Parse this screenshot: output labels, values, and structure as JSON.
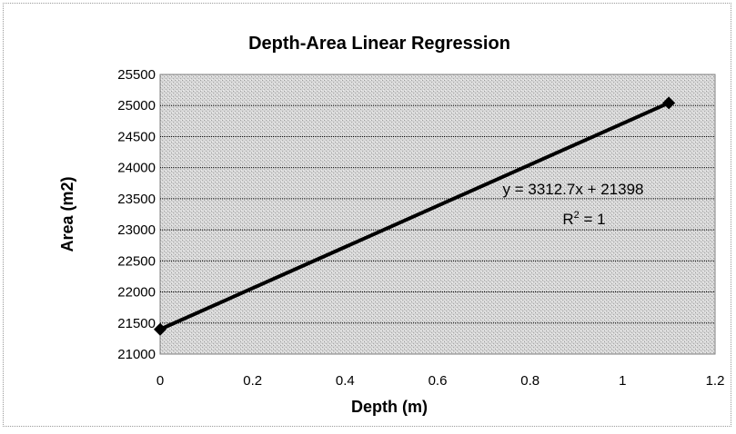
{
  "chart_data": {
    "type": "scatter",
    "title": "Depth-Area Linear Regression",
    "xlabel": "Depth (m)",
    "ylabel": "Area (m2)",
    "xlim": [
      0,
      1.2
    ],
    "ylim": [
      21000,
      25500
    ],
    "x_ticks": [
      "0",
      "0.2",
      "0.4",
      "0.6",
      "0.8",
      "1",
      "1.2"
    ],
    "y_ticks": [
      "21000",
      "21500",
      "22000",
      "22500",
      "23000",
      "23500",
      "24000",
      "24500",
      "25000",
      "25500"
    ],
    "grid": true,
    "legend": "none",
    "series": [
      {
        "marker": "diamond",
        "x": [
          0,
          1.1
        ],
        "y": [
          21398,
          25042
        ]
      }
    ],
    "trendline": {
      "type": "linear",
      "slope": 3312.7,
      "intercept": 21398,
      "equation_label": "y = 3312.7x + 21398",
      "r2_label_prefix": "R",
      "r2_label_exp": "2",
      "r2_label_suffix": " = 1"
    },
    "colors": {
      "plot_background": "#d8d8d8",
      "gridline": "#000000",
      "series": "#000000"
    }
  }
}
